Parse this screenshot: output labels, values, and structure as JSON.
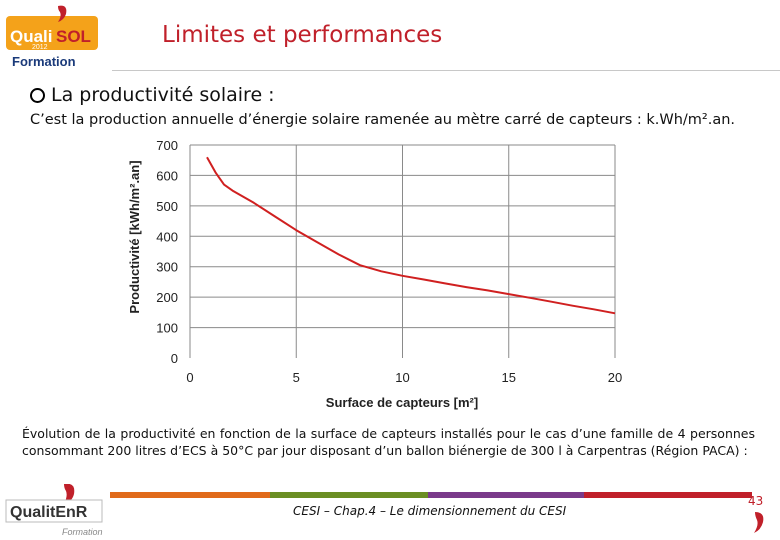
{
  "header": {
    "logo_text_main": "Quali",
    "logo_text_sol": "SOL",
    "logo_year": "2012",
    "logo_sub": "Formation",
    "title": "Limites et performances"
  },
  "content": {
    "bullet": "La productivité solaire :",
    "description": "C’est la production annuelle d’énergie solaire ramenée au mètre carré de capteurs : k.Wh/m².an.",
    "caption": "Évolution de la productivité en fonction de la surface de capteurs installés pour le cas d’une famille de 4 personnes consommant 200 litres d’ECS à 50°C par jour disposant d’un ballon biénergie de 300 l à Carpentras (Région PACA) :"
  },
  "chart_data": {
    "type": "line",
    "title": "",
    "xlabel": "Surface de capteurs [m²]",
    "ylabel": "Productivité [kWh/m².an]",
    "xlim": [
      0,
      20
    ],
    "ylim": [
      0,
      700
    ],
    "xticks": [
      0,
      5,
      10,
      15,
      20
    ],
    "yticks": [
      0,
      100,
      200,
      300,
      400,
      500,
      600,
      700
    ],
    "grid": true,
    "color": "#d02020",
    "series": [
      {
        "x": [
          0.8,
          1.2,
          1.6,
          2.0,
          3,
          4,
          5,
          6,
          7,
          8,
          9,
          10,
          11,
          12,
          13,
          14,
          15,
          16,
          17,
          18,
          19,
          20
        ],
        "values": [
          660,
          610,
          570,
          550,
          510,
          465,
          420,
          380,
          340,
          305,
          285,
          270,
          258,
          245,
          233,
          222,
          210,
          198,
          185,
          172,
          160,
          147
        ]
      }
    ]
  },
  "footer": {
    "logo_text": "QualitEnR",
    "logo_sub": "Formation",
    "text": "CESI – Chap.4 – Le dimensionnement du CESI",
    "page": "43",
    "bar_colors": [
      "#e06a1a",
      "#6b8e23",
      "#7a3a8a",
      "#c0202a"
    ]
  }
}
